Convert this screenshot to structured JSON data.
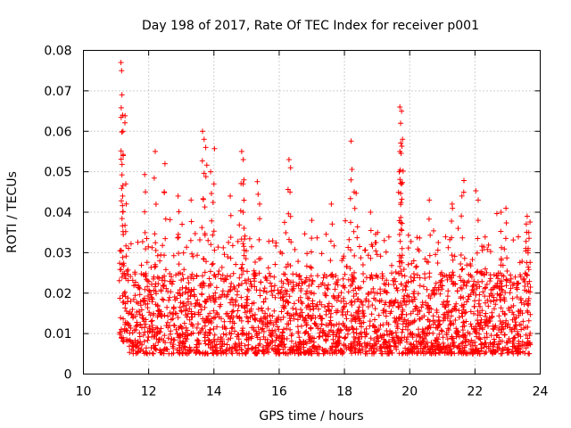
{
  "chart_data": {
    "type": "scatter",
    "title": "Day 198 of 2017, Rate Of TEC Index for receiver p001",
    "xlabel": "GPS time / hours",
    "ylabel": "ROTI / TECUs",
    "xlim": [
      10,
      24
    ],
    "ylim": [
      0,
      0.08
    ],
    "x_ticks": [
      10,
      12,
      14,
      16,
      18,
      20,
      22,
      24
    ],
    "x_tick_labels": [
      "10",
      "12",
      "14",
      "16",
      "18",
      "20",
      "22",
      "24"
    ],
    "y_ticks": [
      0,
      0.01,
      0.02,
      0.03,
      0.04,
      0.05,
      0.06,
      0.07,
      0.08
    ],
    "y_tick_labels": [
      "0",
      "0.01",
      "0.02",
      "0.03",
      "0.04",
      "0.05",
      "0.06",
      "0.07",
      "0.08"
    ],
    "grid": true,
    "marker": "+",
    "color": "#ff0000",
    "series": [
      {
        "name": "ROTI",
        "x_range": [
          11.1,
          23.7
        ],
        "typical_range": [
          0.005,
          0.025
        ],
        "point_count": 2600,
        "peaks": [
          {
            "x": 11.15,
            "y": 0.077
          },
          {
            "x": 11.17,
            "y": 0.075
          },
          {
            "x": 11.18,
            "y": 0.069
          },
          {
            "x": 11.2,
            "y": 0.064
          },
          {
            "x": 11.21,
            "y": 0.06
          },
          {
            "x": 11.22,
            "y": 0.054
          },
          {
            "x": 11.3,
            "y": 0.047
          },
          {
            "x": 11.9,
            "y": 0.045
          },
          {
            "x": 12.2,
            "y": 0.055
          },
          {
            "x": 12.5,
            "y": 0.052
          },
          {
            "x": 12.9,
            "y": 0.044
          },
          {
            "x": 13.3,
            "y": 0.043
          },
          {
            "x": 13.65,
            "y": 0.06
          },
          {
            "x": 13.7,
            "y": 0.058
          },
          {
            "x": 13.75,
            "y": 0.056
          },
          {
            "x": 13.9,
            "y": 0.05
          },
          {
            "x": 14.0,
            "y": 0.047
          },
          {
            "x": 14.5,
            "y": 0.044
          },
          {
            "x": 14.85,
            "y": 0.055
          },
          {
            "x": 14.9,
            "y": 0.053
          },
          {
            "x": 14.92,
            "y": 0.048
          },
          {
            "x": 15.4,
            "y": 0.042
          },
          {
            "x": 16.3,
            "y": 0.053
          },
          {
            "x": 16.35,
            "y": 0.051
          },
          {
            "x": 17.0,
            "y": 0.038
          },
          {
            "x": 17.6,
            "y": 0.042
          },
          {
            "x": 18.2,
            "y": 0.048
          },
          {
            "x": 18.3,
            "y": 0.045
          },
          {
            "x": 18.8,
            "y": 0.04
          },
          {
            "x": 19.7,
            "y": 0.066
          },
          {
            "x": 19.75,
            "y": 0.065
          },
          {
            "x": 19.72,
            "y": 0.062
          },
          {
            "x": 19.78,
            "y": 0.058
          },
          {
            "x": 19.7,
            "y": 0.055
          },
          {
            "x": 19.68,
            "y": 0.05
          },
          {
            "x": 19.75,
            "y": 0.047
          },
          {
            "x": 20.6,
            "y": 0.043
          },
          {
            "x": 21.3,
            "y": 0.042
          },
          {
            "x": 21.6,
            "y": 0.044
          },
          {
            "x": 22.1,
            "y": 0.043
          },
          {
            "x": 22.8,
            "y": 0.04
          },
          {
            "x": 22.95,
            "y": 0.041
          },
          {
            "x": 23.6,
            "y": 0.039
          },
          {
            "x": 23.65,
            "y": 0.035
          }
        ]
      }
    ]
  }
}
